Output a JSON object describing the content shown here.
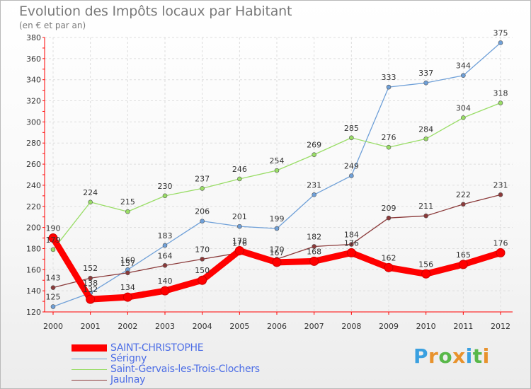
{
  "chart": {
    "title": "Evolution des Impôts locaux par Habitant",
    "subtitle": "(en € et par an)"
  },
  "logo": {
    "text": "Proxiti",
    "letters": [
      "P",
      "r",
      "o",
      "x",
      "i",
      "t",
      "i"
    ],
    "colors": [
      "#3aa0e0",
      "#e8922c",
      "#59b84a",
      "#e8922c",
      "#3aa0e0",
      "#59b84a",
      "#e8922c"
    ]
  },
  "chart_data": {
    "type": "line",
    "title": "Evolution des Impôts locaux par Habitant",
    "subtitle": "(en € et par an)",
    "x": [
      "2000",
      "2001",
      "2002",
      "2003",
      "2004",
      "2005",
      "2006",
      "2007",
      "2008",
      "2009",
      "2010",
      "2011",
      "2012"
    ],
    "ylim": [
      120,
      380
    ],
    "yticks": [
      120,
      140,
      160,
      180,
      200,
      220,
      240,
      260,
      280,
      300,
      320,
      340,
      360,
      380
    ],
    "grid": true,
    "legend_position": "bottom-left",
    "series": [
      {
        "name": "SAINT-CHRISTOPHE",
        "color": "#ff0000",
        "values": [
          190,
          132,
          134,
          140,
          150,
          178,
          167,
          168,
          176,
          162,
          156,
          165,
          176
        ],
        "labels": [
          "190",
          "132",
          "134",
          "140",
          "150",
          "178",
          "167",
          "168",
          "176",
          "162",
          "156",
          "165",
          "176"
        ]
      },
      {
        "name": "Sérigny",
        "color": "#6fa0d8",
        "values": [
          125,
          138,
          160,
          183,
          206,
          201,
          199,
          231,
          249,
          333,
          337,
          344,
          375
        ],
        "labels": [
          "125",
          "138",
          "160",
          "183",
          "206",
          "201",
          "199",
          "231",
          "249",
          "333",
          "337",
          "344",
          "375"
        ]
      },
      {
        "name": "Saint-Gervais-les-Trois-Clochers",
        "color": "#99dd66",
        "values": [
          179,
          224,
          215,
          230,
          237,
          246,
          254,
          269,
          285,
          276,
          284,
          304,
          318
        ],
        "labels": [
          "179",
          "224",
          "215",
          "230",
          "237",
          "246",
          "254",
          "269",
          "285",
          "276",
          "284",
          "304",
          "318"
        ]
      },
      {
        "name": "Jaulnay",
        "color": "#8b3a3a",
        "values": [
          143,
          152,
          157,
          164,
          170,
          176,
          170,
          182,
          184,
          209,
          211,
          222,
          231
        ],
        "labels": [
          "143",
          "152",
          "157",
          "164",
          "170",
          "176",
          "170",
          "182",
          "184",
          "209",
          "211",
          "222",
          "231"
        ]
      }
    ]
  }
}
